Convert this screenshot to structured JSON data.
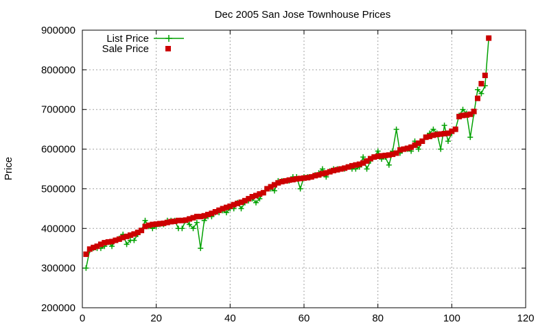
{
  "chart_data": {
    "type": "line",
    "title": "Dec 2005 San Jose Townhouse Prices",
    "xlabel": "",
    "ylabel": "Price",
    "xlim": [
      0,
      120
    ],
    "ylim": [
      200000,
      900000
    ],
    "xticks": [
      0,
      20,
      40,
      60,
      80,
      100,
      120
    ],
    "xtick_labels": [
      "0",
      "20",
      "40",
      "60",
      "80",
      "100",
      "120"
    ],
    "yticks": [
      200000,
      300000,
      400000,
      500000,
      600000,
      700000,
      800000,
      900000
    ],
    "ytick_labels": [
      "200000",
      "300000",
      "400000",
      "500000",
      "600000",
      "700000",
      "800000",
      "900000"
    ],
    "grid": true,
    "legend_position": "top-left",
    "colors": {
      "list": "#00a000",
      "sale": "#cc0000"
    },
    "series": [
      {
        "name": "List Price",
        "style": "line+cross",
        "x": [
          1,
          2,
          3,
          4,
          5,
          6,
          7,
          8,
          9,
          10,
          11,
          12,
          13,
          14,
          15,
          16,
          17,
          18,
          19,
          20,
          21,
          22,
          23,
          24,
          25,
          26,
          27,
          28,
          29,
          30,
          31,
          32,
          33,
          34,
          35,
          36,
          37,
          38,
          39,
          40,
          41,
          42,
          43,
          44,
          45,
          46,
          47,
          48,
          49,
          50,
          51,
          52,
          53,
          54,
          55,
          56,
          57,
          58,
          59,
          60,
          61,
          62,
          63,
          64,
          65,
          66,
          67,
          68,
          69,
          70,
          71,
          72,
          73,
          74,
          75,
          76,
          77,
          78,
          79,
          80,
          81,
          82,
          83,
          84,
          85,
          86,
          87,
          88,
          89,
          90,
          91,
          92,
          93,
          94,
          95,
          96,
          97,
          98,
          99,
          100,
          101,
          102,
          103,
          104,
          105,
          106,
          107,
          108,
          109,
          110
        ],
        "values": [
          300000,
          345000,
          350000,
          350000,
          350000,
          355000,
          365000,
          355000,
          370000,
          375000,
          385000,
          360000,
          370000,
          370000,
          385000,
          395000,
          420000,
          405000,
          400000,
          405000,
          410000,
          410000,
          420000,
          420000,
          420000,
          400000,
          400000,
          420000,
          410000,
          400000,
          415000,
          350000,
          420000,
          430000,
          430000,
          440000,
          440000,
          445000,
          440000,
          450000,
          450000,
          465000,
          450000,
          465000,
          470000,
          475000,
          465000,
          475000,
          490000,
          500000,
          500000,
          495000,
          520000,
          520000,
          520000,
          520000,
          530000,
          530000,
          500000,
          530000,
          530000,
          530000,
          535000,
          540000,
          550000,
          530000,
          545000,
          550000,
          550000,
          550000,
          550000,
          555000,
          550000,
          550000,
          555000,
          580000,
          550000,
          570000,
          580000,
          595000,
          575000,
          580000,
          560000,
          595000,
          650000,
          590000,
          600000,
          600000,
          595000,
          620000,
          600000,
          620000,
          630000,
          640000,
          650000,
          640000,
          600000,
          660000,
          620000,
          640000,
          650000,
          685000,
          700000,
          690000,
          630000,
          690000,
          750000,
          740000,
          760000,
          880000
        ]
      },
      {
        "name": "Sale Price",
        "style": "square-points",
        "x": [
          1,
          2,
          3,
          4,
          5,
          6,
          7,
          8,
          9,
          10,
          11,
          12,
          13,
          14,
          15,
          16,
          17,
          18,
          19,
          20,
          21,
          22,
          23,
          24,
          25,
          26,
          27,
          28,
          29,
          30,
          31,
          32,
          33,
          34,
          35,
          36,
          37,
          38,
          39,
          40,
          41,
          42,
          43,
          44,
          45,
          46,
          47,
          48,
          49,
          50,
          51,
          52,
          53,
          54,
          55,
          56,
          57,
          58,
          59,
          60,
          61,
          62,
          63,
          64,
          65,
          66,
          67,
          68,
          69,
          70,
          71,
          72,
          73,
          74,
          75,
          76,
          77,
          78,
          79,
          80,
          81,
          82,
          83,
          84,
          85,
          86,
          87,
          88,
          89,
          90,
          91,
          92,
          93,
          94,
          95,
          96,
          97,
          98,
          99,
          100,
          101,
          102,
          103,
          104,
          105,
          106,
          107,
          108,
          109,
          110
        ],
        "values": [
          335000,
          348000,
          352000,
          355000,
          360000,
          364000,
          366000,
          367000,
          370000,
          373000,
          377000,
          380000,
          383000,
          386000,
          390000,
          395000,
          405000,
          408000,
          410000,
          411000,
          412000,
          413000,
          415000,
          417000,
          418000,
          420000,
          420000,
          421000,
          424000,
          427000,
          430000,
          430000,
          432000,
          435000,
          438000,
          442000,
          446000,
          450000,
          453000,
          456000,
          460000,
          463000,
          466000,
          470000,
          475000,
          480000,
          483000,
          487000,
          490000,
          500000,
          505000,
          510000,
          515000,
          518000,
          520000,
          522000,
          523000,
          525000,
          526000,
          527000,
          528000,
          530000,
          533000,
          535000,
          538000,
          540000,
          543000,
          546000,
          548000,
          550000,
          552000,
          555000,
          558000,
          560000,
          562000,
          565000,
          570000,
          576000,
          580000,
          582000,
          583000,
          584000,
          585000,
          587000,
          590000,
          598000,
          600000,
          602000,
          605000,
          610000,
          615000,
          620000,
          630000,
          632000,
          635000,
          637000,
          638000,
          639000,
          640000,
          645000,
          650000,
          682000,
          685000,
          686000,
          688000,
          695000,
          728000,
          765000,
          786000,
          880000
        ]
      }
    ]
  }
}
